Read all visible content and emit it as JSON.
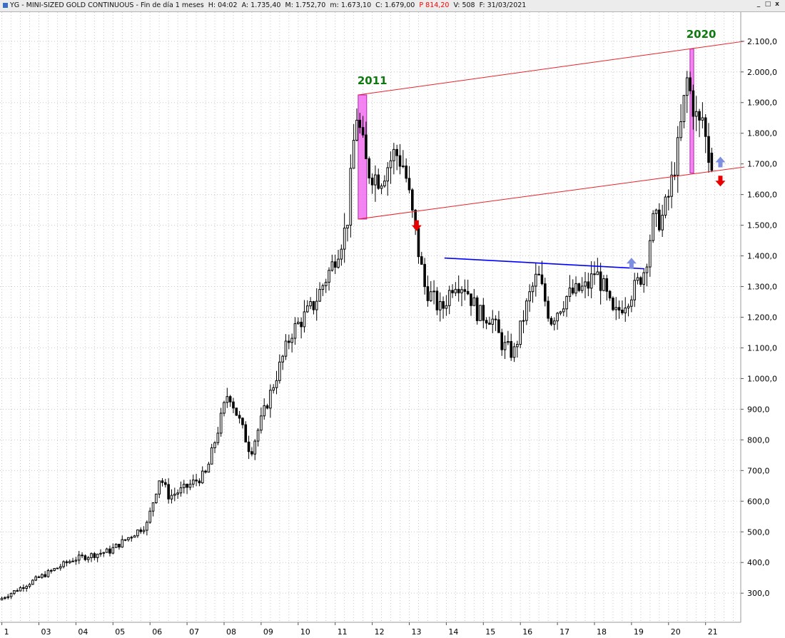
{
  "window": {
    "symbol": "YG",
    "name": "MINI-SIZED GOLD CONTINUOUS",
    "session": "Fin de día 1 meses",
    "h_label": "H:",
    "h": "04:02",
    "a_label": "A:",
    "a": "1.735,40",
    "m_label": "M:",
    "m": "1.752,70",
    "low_label": "m:",
    "low": "1.673,10",
    "c_label": "C:",
    "c": "1.679,00",
    "p_label": "P",
    "p": "814,20",
    "v_label": "V:",
    "v": "508",
    "f_label": "F:",
    "f": "31/03/2021",
    "controls": [
      "_",
      "□",
      "x"
    ]
  },
  "chart_data": {
    "type": "candlestick",
    "interval": "monthly",
    "grid": true,
    "colors": {
      "candle": "#000000",
      "background": "#ffffff",
      "grid": "#c8c8c8",
      "channel": "#e8222c",
      "highlight": "#f26ef0",
      "neckline": "#0000ff",
      "year_label": "#0c7a0c",
      "arrow_up": "#7e8ee0",
      "arrow_down": "#e80000"
    },
    "x_axis": {
      "tick_labels": [
        "1",
        "03",
        "04",
        "05",
        "06",
        "07",
        "08",
        "09",
        "10",
        "11",
        "12",
        "13",
        "14",
        "15",
        "16",
        "17",
        "18",
        "19",
        "20",
        "21"
      ],
      "tick_years": [
        2002,
        2003,
        2004,
        2005,
        2006,
        2007,
        2008,
        2009,
        2010,
        2011,
        2012,
        2013,
        2014,
        2015,
        2016,
        2017,
        2018,
        2019,
        2020,
        2021
      ],
      "range_years": [
        2001.95,
        2021.95
      ]
    },
    "y_axis": {
      "ticks": [
        300,
        400,
        500,
        600,
        700,
        800,
        900,
        1000,
        1100,
        1200,
        1300,
        1400,
        1500,
        1600,
        1700,
        1800,
        1900,
        2000,
        2100
      ],
      "tick_labels": [
        "300,0",
        "400,0",
        "500,0",
        "600,0",
        "700,0",
        "800,0",
        "900,0",
        "1.000,0",
        "1.100,0",
        "1.200,0",
        "1.300,0",
        "1.400,0",
        "1.500,0",
        "1.600,0",
        "1.700,0",
        "1.800,0",
        "1.900,0",
        "2.000,0",
        "2.100,0"
      ],
      "range": [
        205,
        2195
      ]
    },
    "anchors": [
      [
        2002.0,
        278
      ],
      [
        2003.0,
        345
      ],
      [
        2004.0,
        410
      ],
      [
        2005.0,
        438
      ],
      [
        2006.0,
        525
      ],
      [
        2006.35,
        680
      ],
      [
        2006.6,
        615
      ],
      [
        2007.0,
        640
      ],
      [
        2007.6,
        690
      ],
      [
        2008.2,
        960
      ],
      [
        2008.8,
        760
      ],
      [
        2009.3,
        940
      ],
      [
        2009.9,
        1150
      ],
      [
        2010.5,
        1240
      ],
      [
        2011.0,
        1370
      ],
      [
        2011.4,
        1500
      ],
      [
        2011.65,
        1870
      ],
      [
        2011.95,
        1680
      ],
      [
        2012.3,
        1650
      ],
      [
        2012.7,
        1740
      ],
      [
        2012.95,
        1690
      ],
      [
        2013.25,
        1470
      ],
      [
        2013.5,
        1300
      ],
      [
        2013.95,
        1220
      ],
      [
        2014.3,
        1320
      ],
      [
        2014.6,
        1300
      ],
      [
        2014.95,
        1210
      ],
      [
        2015.3,
        1200
      ],
      [
        2015.6,
        1110
      ],
      [
        2015.9,
        1080
      ],
      [
        2016.3,
        1260
      ],
      [
        2016.55,
        1340
      ],
      [
        2016.9,
        1190
      ],
      [
        2017.35,
        1270
      ],
      [
        2017.7,
        1290
      ],
      [
        2017.9,
        1300
      ],
      [
        2018.1,
        1350
      ],
      [
        2018.35,
        1290
      ],
      [
        2018.6,
        1200
      ],
      [
        2018.9,
        1250
      ],
      [
        2019.2,
        1300
      ],
      [
        2019.45,
        1360
      ],
      [
        2019.65,
        1510
      ],
      [
        2019.9,
        1520
      ],
      [
        2020.1,
        1600
      ],
      [
        2020.35,
        1760
      ],
      [
        2020.58,
        1975
      ],
      [
        2020.75,
        1890
      ],
      [
        2020.9,
        1820
      ],
      [
        2021.0,
        1850
      ],
      [
        2021.15,
        1730
      ],
      [
        2021.25,
        1690
      ]
    ],
    "last_candle": {
      "open": 1735.4,
      "high": 1752.7,
      "low": 1673.1,
      "close": 1679.0
    },
    "channel": {
      "upper": [
        [
          2011.62,
          1925
        ],
        [
          2022.05,
          2100
        ]
      ],
      "lower": [
        [
          2011.62,
          1520
        ],
        [
          2022.05,
          1690
        ]
      ]
    },
    "highlights": [
      {
        "from": 2011.62,
        "to": 2011.85,
        "low": 1520,
        "high": 1925
      },
      {
        "from": 2020.58,
        "to": 2020.68,
        "low": 1670,
        "high": 2075
      }
    ],
    "neckline": [
      [
        2013.95,
        1393
      ],
      [
        2019.35,
        1358
      ]
    ],
    "year_labels": [
      {
        "text": "2011",
        "x": 2011.6,
        "y": 1960
      },
      {
        "text": "2020",
        "x": 2020.48,
        "y": 2111
      }
    ],
    "arrows": [
      {
        "dir": "down",
        "x": 2013.2,
        "y": 1500
      },
      {
        "dir": "up",
        "x": 2019.0,
        "y": 1375
      },
      {
        "dir": "up",
        "x": 2021.4,
        "y": 1705
      },
      {
        "dir": "down",
        "x": 2021.4,
        "y": 1645
      }
    ]
  }
}
